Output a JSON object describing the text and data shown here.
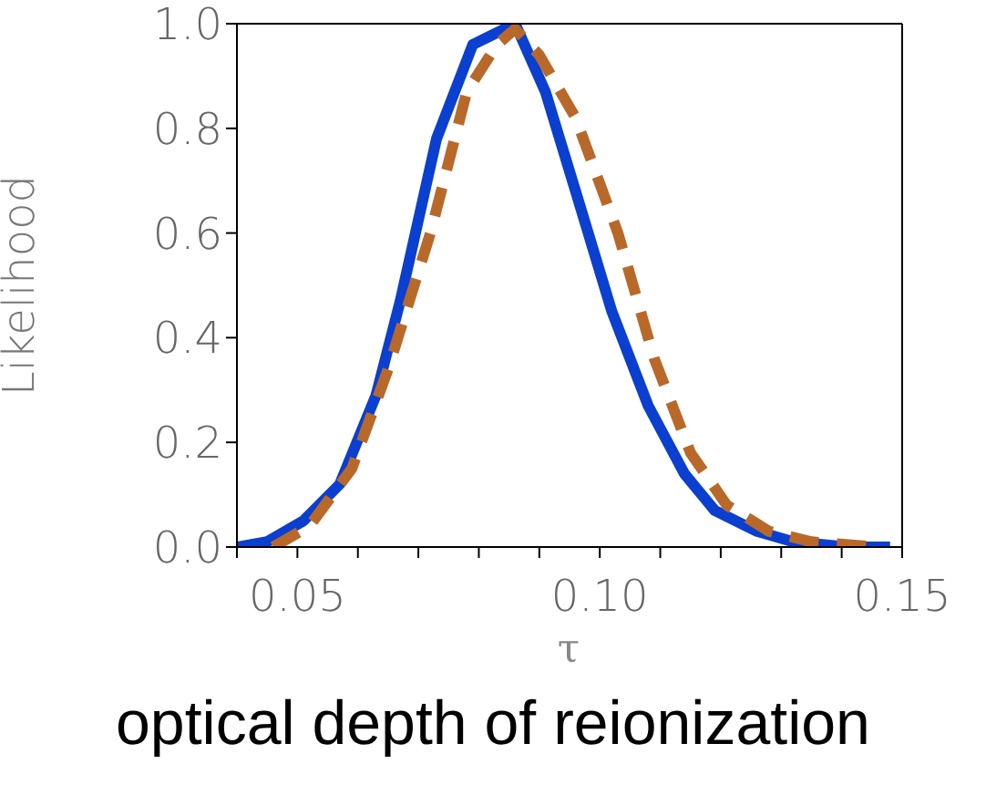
{
  "chart_data": {
    "type": "line",
    "xlabel": "τ",
    "ylabel": "Likelihood",
    "annotations": [
      "optical depth of reionization"
    ],
    "xlim": [
      0.04,
      0.15
    ],
    "xticks": [
      {
        "value": 0.04,
        "label": null
      },
      {
        "value": 0.05,
        "label": "0.05"
      },
      {
        "value": 0.06,
        "label": null
      },
      {
        "value": 0.07,
        "label": null
      },
      {
        "value": 0.08,
        "label": null
      },
      {
        "value": 0.09,
        "label": null
      },
      {
        "value": 0.1,
        "label": "0.10"
      },
      {
        "value": 0.11,
        "label": null
      },
      {
        "value": 0.12,
        "label": null
      },
      {
        "value": 0.13,
        "label": null
      },
      {
        "value": 0.14,
        "label": null
      },
      {
        "value": 0.15,
        "label": "0.15"
      }
    ],
    "ylim": [
      0,
      1
    ],
    "yticks": [
      {
        "value": 0,
        "label": "0.0"
      },
      {
        "value": 0.2,
        "label": "0.2"
      },
      {
        "value": 0.4,
        "label": "0.4"
      },
      {
        "value": 0.6,
        "label": "0.6"
      },
      {
        "value": 0.8,
        "label": "0.8"
      },
      {
        "value": 1,
        "label": "1.0"
      }
    ],
    "marker": "none",
    "series": [
      {
        "color": "#0a3fd0",
        "line_style": "solid",
        "x": [
          0.04,
          0.045,
          0.051,
          0.057,
          0.063,
          0.067,
          0.073,
          0.079,
          0.086,
          0.091,
          0.096,
          0.102,
          0.108,
          0.114,
          0.119,
          0.126,
          0.132,
          0.141,
          0.148
        ],
        "values": [
          0,
          0.01,
          0.05,
          0.12,
          0.29,
          0.47,
          0.78,
          0.96,
          1.0,
          0.87,
          0.68,
          0.45,
          0.27,
          0.14,
          0.07,
          0.03,
          0.01,
          0,
          0
        ]
      },
      {
        "color": "#b8692a",
        "line_style": "dashed",
        "x": [
          0.046,
          0.052,
          0.059,
          0.065,
          0.072,
          0.078,
          0.083,
          0.086,
          0.09,
          0.096,
          0.103,
          0.109,
          0.115,
          0.121,
          0.128,
          0.135,
          0.146
        ],
        "values": [
          0,
          0.04,
          0.15,
          0.34,
          0.6,
          0.87,
          0.96,
          0.99,
          0.94,
          0.82,
          0.6,
          0.36,
          0.18,
          0.08,
          0.03,
          0.01,
          0
        ]
      }
    ]
  }
}
